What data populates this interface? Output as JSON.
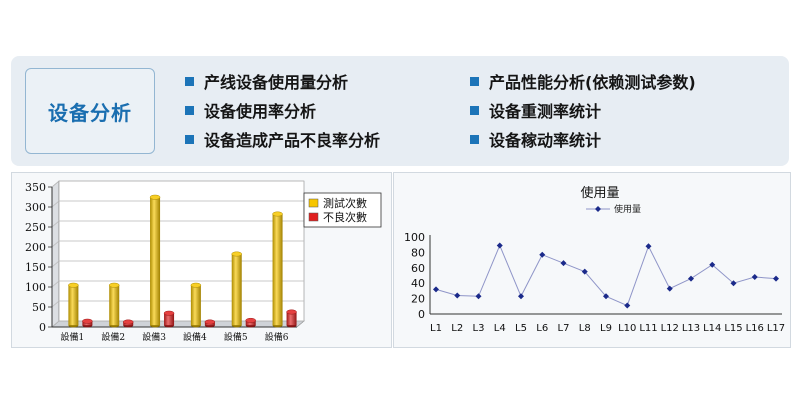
{
  "header": {
    "title": "设备分析",
    "features_left": [
      "产线设备使用量分析",
      "设备使用率分析",
      "设备造成产品不良率分析"
    ],
    "features_right": [
      "产品性能分析(依赖测试参数)",
      "设备重测率统计",
      "设备稼动率统计"
    ],
    "accent_color": "#1c74b8"
  },
  "chart_data": [
    {
      "type": "bar",
      "categories": [
        "設備1",
        "設備2",
        "設備3",
        "設備4",
        "設備5",
        "設備6"
      ],
      "series": [
        {
          "name": "測試次數",
          "values": [
            100,
            100,
            320,
            100,
            178,
            278
          ],
          "color": "#f7c600"
        },
        {
          "name": "不良次數",
          "values": [
            10,
            8,
            30,
            8,
            12,
            33
          ],
          "color": "#e02020"
        }
      ],
      "yticks": [
        0,
        50,
        100,
        150,
        200,
        250,
        300,
        350
      ],
      "ylim": [
        0,
        350
      ],
      "grid": true,
      "legend": "top-right"
    },
    {
      "type": "line",
      "title": "使用量",
      "categories": [
        "L1",
        "L2",
        "L3",
        "L4",
        "L5",
        "L6",
        "L7",
        "L8",
        "L9",
        "L10",
        "L11",
        "L12",
        "L13",
        "L14",
        "L15",
        "L16",
        "L17"
      ],
      "series": [
        {
          "name": "使用量",
          "values": [
            32,
            24,
            23,
            89,
            23,
            77,
            66,
            55,
            23,
            11,
            88,
            33,
            46,
            64,
            40,
            48,
            46
          ],
          "color": "#8f95c8",
          "marker_color": "#1b2a8a"
        }
      ],
      "yticks": [
        0,
        10,
        20,
        30,
        40,
        50,
        60,
        70,
        80,
        90,
        100
      ],
      "ylim": [
        0,
        100
      ],
      "grid": false,
      "legend": "top"
    }
  ]
}
